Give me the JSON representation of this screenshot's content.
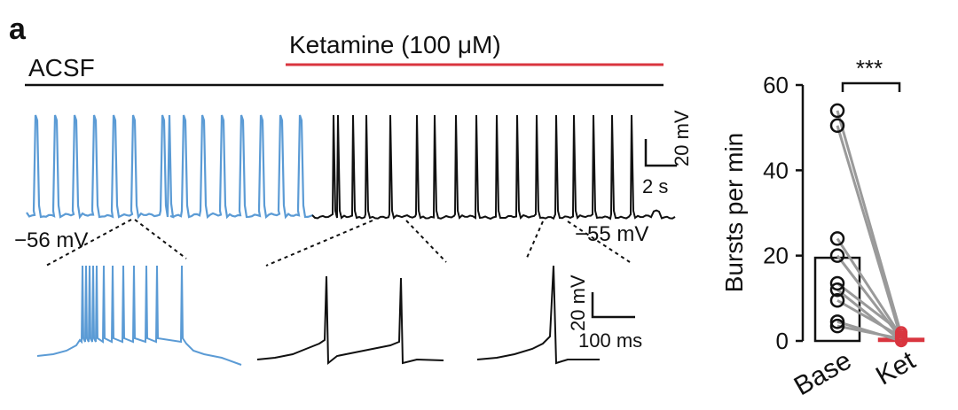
{
  "figure": {
    "panel_label": "a",
    "condition_control": "ACSF",
    "condition_drug": "Ketamine (100 μM)",
    "resting_left": "−56 mV",
    "resting_right": "−55 mV",
    "scale_top_v": "20 mV",
    "scale_top_t": "2 s",
    "scale_bottom_v": "20 mV",
    "scale_bottom_t": "100 ms"
  },
  "colors": {
    "control": "#5b9bd5",
    "drug": "#111111",
    "drug_bar": "#d9353f",
    "paired_lines": "#9a9a9a",
    "ket_points": "#d9353f"
  },
  "chart_data": {
    "type": "bar",
    "categories": [
      "Base",
      "Ket"
    ],
    "ylabel": "Bursts per min",
    "ylim": [
      0,
      60
    ],
    "yticks": [
      0,
      20,
      40,
      60
    ],
    "bar_values": [
      19.5,
      0.5
    ],
    "significance": "***",
    "paired_points": [
      [
        54,
        1.5
      ],
      [
        50.5,
        0.5
      ],
      [
        24,
        1
      ],
      [
        20,
        0.5
      ],
      [
        13.5,
        2
      ],
      [
        12,
        0
      ],
      [
        9.5,
        1
      ],
      [
        4.5,
        0
      ],
      [
        3.5,
        0.5
      ]
    ]
  }
}
